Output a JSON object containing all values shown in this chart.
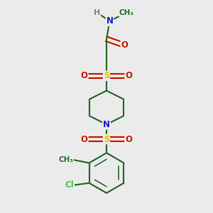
{
  "background_color": "#ebebeb",
  "bond_color": "#2d6b2d",
  "bond_width": 1.6,
  "atom_colors": {
    "N": "#1a1acc",
    "O": "#cc1a00",
    "S": "#cccc00",
    "Cl": "#44cc44",
    "C": "#2d6b2d",
    "H": "#6b8f8f"
  },
  "font_size": 8.5,
  "fig_size": [
    3.0,
    3.0
  ],
  "dpi": 100,
  "xlim": [
    0,
    10
  ],
  "ylim": [
    0,
    10
  ]
}
